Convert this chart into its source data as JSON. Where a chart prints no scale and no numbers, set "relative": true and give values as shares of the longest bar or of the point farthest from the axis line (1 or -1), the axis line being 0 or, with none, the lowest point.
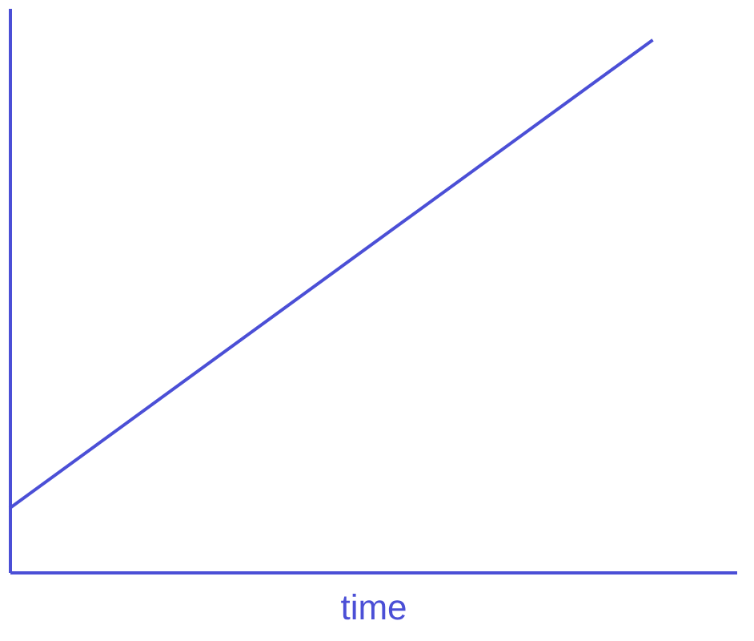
{
  "chart_data": {
    "type": "line",
    "relative": true,
    "xlabel": "time",
    "categories": [
      null,
      null
    ],
    "series": [
      {
        "color": "#4b4fd6",
        "values": [
          0.12,
          1
        ]
      }
    ],
    "tick_labels": false,
    "grid": false,
    "marker": "none",
    "line_style": "solid"
  }
}
